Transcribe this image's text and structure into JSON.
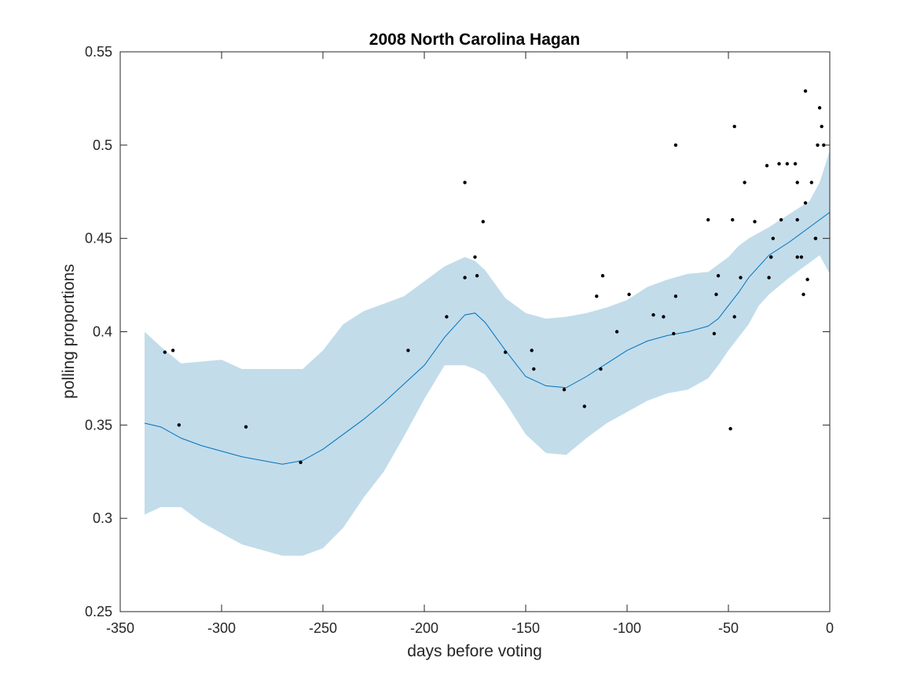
{
  "chart_data": {
    "type": "scatter",
    "title": "2008 North Carolina Hagan",
    "xlabel": "days before voting",
    "ylabel": "polling proportions",
    "xlim": [
      -350,
      0
    ],
    "ylim": [
      0.25,
      0.55
    ],
    "xticks": [
      -350,
      -300,
      -250,
      -200,
      -150,
      -100,
      -50,
      0
    ],
    "xtick_labels": [
      "-350",
      "-300",
      "-250",
      "-200",
      "-150",
      "-100",
      "-50",
      "0"
    ],
    "yticks": [
      0.25,
      0.3,
      0.35,
      0.4,
      0.45,
      0.5,
      0.55
    ],
    "ytick_labels": [
      "0.25",
      "0.3",
      "0.35",
      "0.4",
      "0.45",
      "0.5",
      "0.55"
    ],
    "grid": false,
    "colors": {
      "band": "#c2dcea",
      "trend": "#0072bd",
      "points": "#000000",
      "axes": "#262626"
    },
    "series": [
      {
        "type": "scatter",
        "x": [
          -328,
          -324,
          -321,
          -288,
          -261,
          -208,
          -189,
          -180,
          -180,
          -175,
          -174,
          -171,
          -160,
          -147,
          -146,
          -131,
          -121,
          -115,
          -113,
          -112,
          -105,
          -99,
          -87,
          -82,
          -77,
          -76,
          -76,
          -60,
          -57,
          -56,
          -55,
          -49,
          -48,
          -47,
          -47,
          -44,
          -42,
          -37,
          -31,
          -30,
          -29,
          -29,
          -28,
          -25,
          -24,
          -21,
          -17,
          -16,
          -16,
          -16,
          -14,
          -13,
          -12,
          -12,
          -11,
          -9,
          -7,
          -7,
          -6,
          -5,
          -4,
          -3
        ],
        "y": [
          0.389,
          0.39,
          0.35,
          0.349,
          0.33,
          0.39,
          0.408,
          0.48,
          0.429,
          0.44,
          0.43,
          0.459,
          0.389,
          0.39,
          0.38,
          0.369,
          0.36,
          0.419,
          0.38,
          0.43,
          0.4,
          0.42,
          0.409,
          0.408,
          0.399,
          0.5,
          0.419,
          0.46,
          0.399,
          0.42,
          0.43,
          0.348,
          0.46,
          0.408,
          0.51,
          0.429,
          0.48,
          0.459,
          0.489,
          0.429,
          0.44,
          0.44,
          0.45,
          0.49,
          0.46,
          0.49,
          0.49,
          0.46,
          0.48,
          0.44,
          0.44,
          0.42,
          0.469,
          0.529,
          0.428,
          0.48,
          0.45,
          0.45,
          0.5,
          0.52,
          0.51,
          0.5
        ]
      },
      {
        "type": "line",
        "x": [
          -338,
          -330,
          -320,
          -310,
          -300,
          -290,
          -280,
          -270,
          -260,
          -250,
          -240,
          -230,
          -220,
          -210,
          -200,
          -190,
          -180,
          -175,
          -170,
          -160,
          -150,
          -140,
          -130,
          -120,
          -110,
          -100,
          -90,
          -80,
          -70,
          -60,
          -55,
          -50,
          -45,
          -40,
          -35,
          -30,
          -20,
          -10,
          -5,
          0
        ],
        "y": [
          0.351,
          0.349,
          0.343,
          0.339,
          0.336,
          0.333,
          0.331,
          0.329,
          0.331,
          0.337,
          0.345,
          0.353,
          0.362,
          0.372,
          0.382,
          0.397,
          0.409,
          0.41,
          0.405,
          0.39,
          0.376,
          0.371,
          0.37,
          0.376,
          0.383,
          0.39,
          0.395,
          0.398,
          0.4,
          0.403,
          0.407,
          0.414,
          0.421,
          0.429,
          0.435,
          0.441,
          0.448,
          0.456,
          0.46,
          0.464
        ]
      },
      {
        "type": "area",
        "x": [
          -338,
          -330,
          -320,
          -310,
          -300,
          -290,
          -280,
          -270,
          -260,
          -250,
          -240,
          -230,
          -220,
          -210,
          -200,
          -190,
          -180,
          -175,
          -170,
          -160,
          -150,
          -140,
          -130,
          -120,
          -110,
          -100,
          -90,
          -80,
          -70,
          -60,
          -55,
          -50,
          -45,
          -40,
          -35,
          -30,
          -20,
          -10,
          -5,
          0
        ],
        "upper": [
          0.4,
          0.392,
          0.383,
          0.384,
          0.385,
          0.38,
          0.38,
          0.38,
          0.38,
          0.39,
          0.404,
          0.411,
          0.415,
          0.419,
          0.427,
          0.435,
          0.44,
          0.438,
          0.433,
          0.418,
          0.41,
          0.407,
          0.408,
          0.41,
          0.413,
          0.417,
          0.424,
          0.428,
          0.431,
          0.432,
          0.436,
          0.44,
          0.446,
          0.45,
          0.453,
          0.456,
          0.463,
          0.47,
          0.48,
          0.497
        ],
        "lower": [
          0.302,
          0.306,
          0.306,
          0.298,
          0.292,
          0.286,
          0.283,
          0.28,
          0.28,
          0.284,
          0.295,
          0.311,
          0.325,
          0.344,
          0.364,
          0.382,
          0.382,
          0.38,
          0.377,
          0.362,
          0.345,
          0.335,
          0.334,
          0.343,
          0.351,
          0.357,
          0.363,
          0.367,
          0.369,
          0.375,
          0.382,
          0.39,
          0.397,
          0.404,
          0.414,
          0.42,
          0.429,
          0.437,
          0.441,
          0.431
        ]
      }
    ]
  }
}
